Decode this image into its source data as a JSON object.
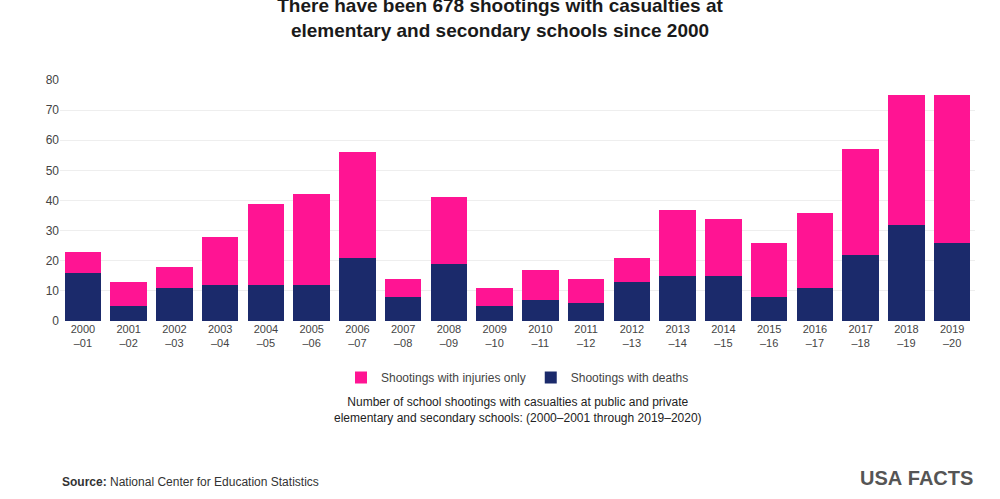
{
  "chart_data": {
    "type": "bar",
    "stacked": true,
    "title": "There have been 678 shootings with casualties at\nelementary and secondary schools since 2000",
    "subtitle": "Number of school shootings with casualties at public and private\nelementary and secondary schools: (2000–2001 through 2019–2020)",
    "categories": [
      "2000\n–01",
      "2001\n–02",
      "2002\n–03",
      "2003\n–04",
      "2004\n–05",
      "2005\n–06",
      "2006\n–07",
      "2007\n–08",
      "2008\n–09",
      "2009\n–10",
      "2010\n–11",
      "2011\n–12",
      "2012\n–13",
      "2013\n–14",
      "2014\n–15",
      "2015\n–16",
      "2016\n–17",
      "2017\n–18",
      "2018\n–19",
      "2019\n–20"
    ],
    "series": [
      {
        "name": "Shootings with deaths",
        "color": "#1b2a6b",
        "values": [
          16,
          5,
          11,
          12,
          12,
          12,
          21,
          8,
          19,
          5,
          7,
          6,
          13,
          15,
          15,
          8,
          11,
          22,
          32,
          26
        ]
      },
      {
        "name": "Shootings with injuries only",
        "color": "#FF1493",
        "values": [
          7,
          8,
          7,
          16,
          27,
          30,
          35,
          6,
          22,
          6,
          10,
          8,
          8,
          22,
          19,
          18,
          25,
          35,
          43,
          49
        ]
      }
    ],
    "ylim": [
      0,
      80
    ],
    "yticks": [
      0,
      10,
      20,
      30,
      40,
      50,
      60,
      70,
      80
    ],
    "grid": true,
    "legend": "bottom",
    "annotations": [
      "Source:",
      "National Center for Education Statistics",
      "USA",
      "FACTS"
    ]
  }
}
